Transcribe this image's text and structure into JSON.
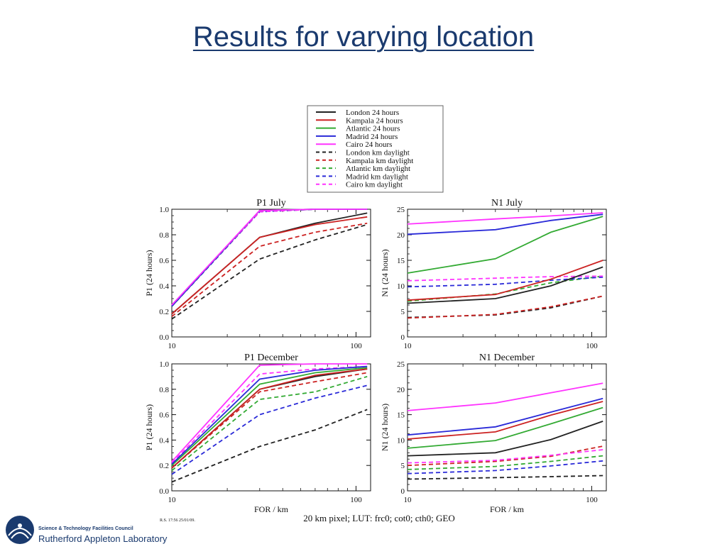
{
  "title": "Results for varying location",
  "footer": {
    "stamp": "R.S. 17:56 25/01/09.",
    "caption": "20 km pixel; LUT: frc0; cot0; cth0; GEO"
  },
  "logo": {
    "org_line": "Science & Technology Facilities Council",
    "lab_line": "Rutherford Appleton Laboratory"
  },
  "colors": {
    "London": "#222222",
    "Kampala": "#cc2222",
    "Atlantic": "#33aa33",
    "Madrid": "#2a2ad8",
    "Cairo": "#ff33ff"
  },
  "legend": [
    {
      "label": "London 24 hours",
      "color": "#222222",
      "dash": false
    },
    {
      "label": "Kampala 24 hours",
      "color": "#cc2222",
      "dash": false
    },
    {
      "label": "Atlantic 24 hours",
      "color": "#33aa33",
      "dash": false
    },
    {
      "label": "Madrid 24 hours",
      "color": "#2a2ad8",
      "dash": false
    },
    {
      "label": "Cairo 24 hours",
      "color": "#ff33ff",
      "dash": false
    },
    {
      "label": "London km daylight",
      "color": "#222222",
      "dash": true
    },
    {
      "label": "Kampala km daylight",
      "color": "#cc2222",
      "dash": true
    },
    {
      "label": "Atlantic km daylight",
      "color": "#33aa33",
      "dash": true
    },
    {
      "label": "Madrid km daylight",
      "color": "#2a2ad8",
      "dash": true
    },
    {
      "label": "Cairo km daylight",
      "color": "#ff33ff",
      "dash": true
    }
  ],
  "chart_data": [
    {
      "type": "line",
      "title": "P1 July",
      "xlabel": "",
      "ylabel": "P1 (24 hours)",
      "xscale": "log",
      "xlim": [
        10,
        120
      ],
      "xticks": [
        10,
        100
      ],
      "ylim": [
        0,
        1.0
      ],
      "yticks": [
        "0.0",
        "0.2",
        "0.4",
        "0.6",
        "0.8",
        "1.0"
      ],
      "x": [
        10,
        30,
        60,
        115
      ],
      "series": [
        {
          "loc": "London",
          "kind": "24 hours",
          "values": [
            0.18,
            0.78,
            0.89,
            0.97
          ]
        },
        {
          "loc": "Kampala",
          "kind": "24 hours",
          "values": [
            0.18,
            0.78,
            0.88,
            0.94
          ]
        },
        {
          "loc": "Atlantic",
          "kind": "24 hours",
          "values": [
            0.24,
            0.99,
            1.0,
            1.0
          ]
        },
        {
          "loc": "Madrid",
          "kind": "24 hours",
          "values": [
            0.24,
            0.99,
            1.0,
            1.0
          ]
        },
        {
          "loc": "Cairo",
          "kind": "24 hours",
          "values": [
            0.25,
            0.99,
            1.0,
            1.0
          ]
        },
        {
          "loc": "London",
          "kind": "km daylight",
          "values": [
            0.14,
            0.61,
            0.76,
            0.88
          ]
        },
        {
          "loc": "Kampala",
          "kind": "km daylight",
          "values": [
            0.16,
            0.71,
            0.82,
            0.89
          ]
        },
        {
          "loc": "Atlantic",
          "kind": "km daylight",
          "values": [
            0.24,
            0.98,
            1.0,
            1.0
          ]
        },
        {
          "loc": "Madrid",
          "kind": "km daylight",
          "values": [
            0.24,
            0.98,
            1.0,
            1.0
          ]
        },
        {
          "loc": "Cairo",
          "kind": "km daylight",
          "values": [
            0.25,
            0.98,
            1.0,
            1.0
          ]
        }
      ]
    },
    {
      "type": "line",
      "title": "N1 July",
      "xlabel": "",
      "ylabel": "N1 (24 hours)",
      "xscale": "log",
      "xlim": [
        10,
        120
      ],
      "xticks": [
        10,
        100
      ],
      "ylim": [
        0,
        25
      ],
      "yticks": [
        "0",
        "5",
        "10",
        "15",
        "20",
        "25"
      ],
      "x": [
        10,
        30,
        60,
        115
      ],
      "series": [
        {
          "loc": "London",
          "kind": "24 hours",
          "values": [
            6.6,
            7.5,
            10.0,
            13.7
          ]
        },
        {
          "loc": "Kampala",
          "kind": "24 hours",
          "values": [
            7.2,
            8.3,
            11.3,
            15.0
          ]
        },
        {
          "loc": "Atlantic",
          "kind": "24 hours",
          "values": [
            12.5,
            15.3,
            20.5,
            23.6
          ]
        },
        {
          "loc": "Madrid",
          "kind": "24 hours",
          "values": [
            20.1,
            21.0,
            22.8,
            24.0
          ]
        },
        {
          "loc": "Cairo",
          "kind": "24 hours",
          "values": [
            22.1,
            23.1,
            23.7,
            24.3
          ]
        },
        {
          "loc": "London",
          "kind": "km daylight",
          "values": [
            3.8,
            4.3,
            5.7,
            8.0
          ]
        },
        {
          "loc": "Kampala",
          "kind": "km daylight",
          "values": [
            3.7,
            4.4,
            5.9,
            8.0
          ]
        },
        {
          "loc": "Atlantic",
          "kind": "km daylight",
          "values": [
            7.0,
            8.4,
            10.6,
            11.9
          ]
        },
        {
          "loc": "Madrid",
          "kind": "km daylight",
          "values": [
            9.8,
            10.3,
            11.1,
            11.7
          ]
        },
        {
          "loc": "Cairo",
          "kind": "km daylight",
          "values": [
            11.0,
            11.5,
            11.8,
            11.9
          ]
        }
      ]
    },
    {
      "type": "line",
      "title": "P1 December",
      "xlabel": "FOR / km",
      "ylabel": "P1 (24 hours)",
      "xscale": "log",
      "xlim": [
        10,
        120
      ],
      "xticks": [
        10,
        100
      ],
      "ylim": [
        0,
        1.0
      ],
      "yticks": [
        "0.0",
        "0.2",
        "0.4",
        "0.6",
        "0.8",
        "1.0"
      ],
      "x": [
        10,
        30,
        60,
        115
      ],
      "series": [
        {
          "loc": "London",
          "kind": "24 hours",
          "values": [
            0.18,
            0.8,
            0.9,
            0.96
          ]
        },
        {
          "loc": "Kampala",
          "kind": "24 hours",
          "values": [
            0.18,
            0.8,
            0.91,
            0.96
          ]
        },
        {
          "loc": "Atlantic",
          "kind": "24 hours",
          "values": [
            0.2,
            0.84,
            0.93,
            0.97
          ]
        },
        {
          "loc": "Madrid",
          "kind": "24 hours",
          "values": [
            0.21,
            0.88,
            0.95,
            0.98
          ]
        },
        {
          "loc": "Cairo",
          "kind": "24 hours",
          "values": [
            0.23,
            0.99,
            1.0,
            1.0
          ]
        },
        {
          "loc": "London",
          "kind": "km daylight",
          "values": [
            0.07,
            0.35,
            0.48,
            0.64
          ]
        },
        {
          "loc": "Kampala",
          "kind": "km daylight",
          "values": [
            0.18,
            0.78,
            0.86,
            0.93
          ]
        },
        {
          "loc": "Atlantic",
          "kind": "km daylight",
          "values": [
            0.16,
            0.72,
            0.78,
            0.9
          ]
        },
        {
          "loc": "Madrid",
          "kind": "km daylight",
          "values": [
            0.13,
            0.6,
            0.73,
            0.83
          ]
        },
        {
          "loc": "Cairo",
          "kind": "km daylight",
          "values": [
            0.22,
            0.92,
            0.96,
            0.98
          ]
        }
      ]
    },
    {
      "type": "line",
      "title": "N1 December",
      "xlabel": "FOR / km",
      "ylabel": "N1 (24 hours)",
      "xscale": "log",
      "xlim": [
        10,
        120
      ],
      "xticks": [
        10,
        100
      ],
      "ylim": [
        0,
        25
      ],
      "yticks": [
        "0",
        "5",
        "10",
        "15",
        "20",
        "25"
      ],
      "x": [
        10,
        30,
        60,
        115
      ],
      "series": [
        {
          "loc": "London",
          "kind": "24 hours",
          "values": [
            6.9,
            7.5,
            10.1,
            13.7
          ]
        },
        {
          "loc": "Kampala",
          "kind": "24 hours",
          "values": [
            10.2,
            11.6,
            14.9,
            17.6
          ]
        },
        {
          "loc": "Atlantic",
          "kind": "24 hours",
          "values": [
            8.4,
            9.9,
            13.2,
            16.4
          ]
        },
        {
          "loc": "Madrid",
          "kind": "24 hours",
          "values": [
            11.0,
            12.6,
            15.5,
            18.2
          ]
        },
        {
          "loc": "Cairo",
          "kind": "24 hours",
          "values": [
            15.8,
            17.3,
            19.3,
            21.2
          ]
        },
        {
          "loc": "London",
          "kind": "km daylight",
          "values": [
            2.3,
            2.6,
            2.8,
            3.0
          ]
        },
        {
          "loc": "Kampala",
          "kind": "km daylight",
          "values": [
            5.0,
            5.8,
            6.8,
            8.8
          ]
        },
        {
          "loc": "Atlantic",
          "kind": "km daylight",
          "values": [
            4.2,
            4.8,
            5.8,
            6.9
          ]
        },
        {
          "loc": "Madrid",
          "kind": "km daylight",
          "values": [
            3.4,
            4.0,
            4.9,
            5.9
          ]
        },
        {
          "loc": "Cairo",
          "kind": "km daylight",
          "values": [
            5.5,
            6.0,
            7.0,
            8.1
          ]
        }
      ]
    }
  ]
}
